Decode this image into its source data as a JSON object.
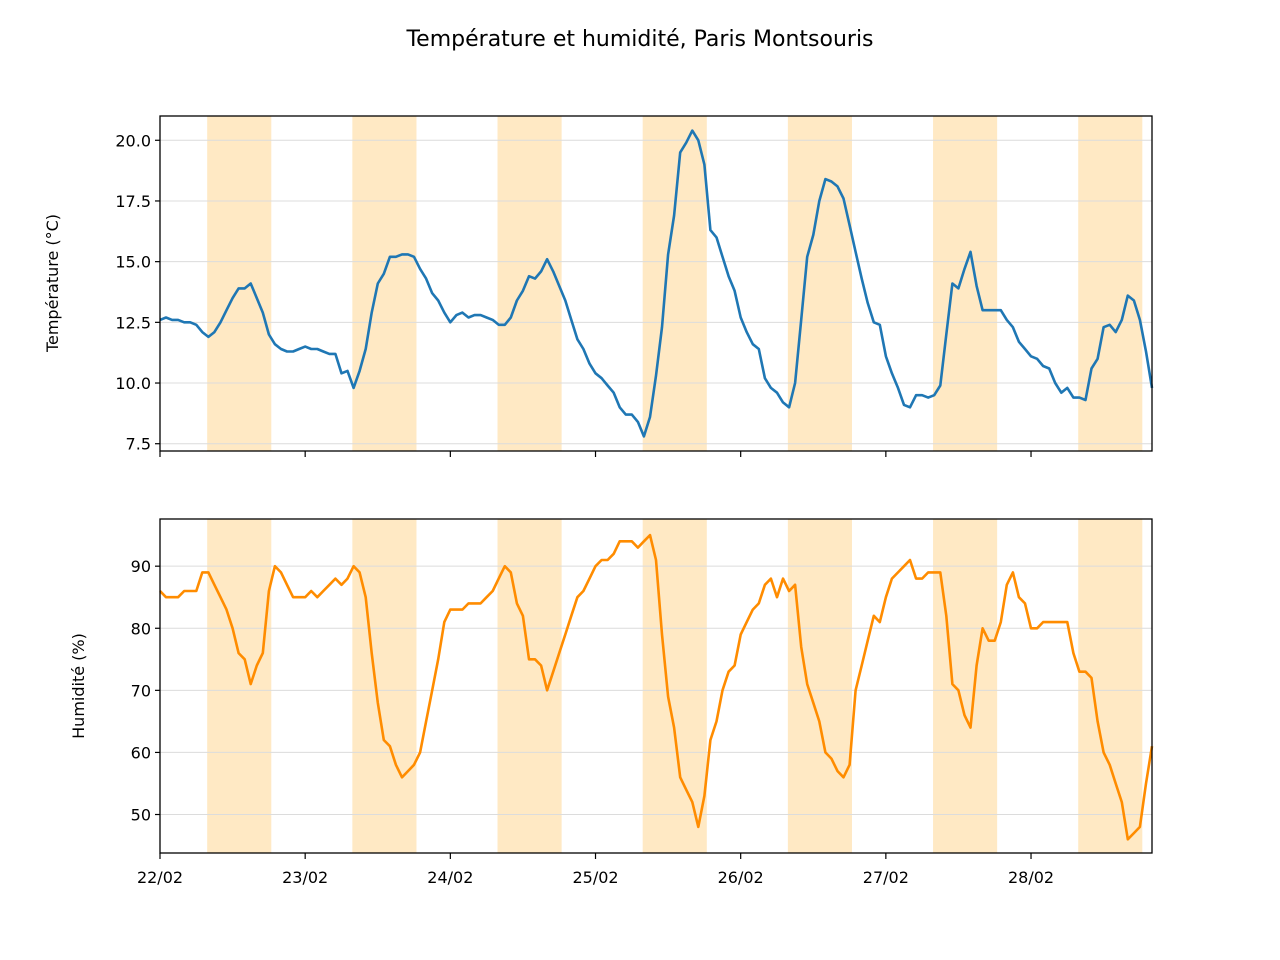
{
  "figure": {
    "title": "Température et humidité, Paris Montsouris"
  },
  "colors": {
    "temperature": "#1f77b4",
    "humidity": "#ff8c00",
    "daylight_band": "#ffe9c4",
    "grid": "#dcdcdc"
  },
  "chart_data": [
    {
      "type": "line",
      "ylabel": "Température (°C)",
      "xlabel": "",
      "ylim": [
        7.2,
        21.0
      ],
      "yticks": [
        7.5,
        10.0,
        12.5,
        15.0,
        17.5,
        20.0
      ],
      "ytick_labels": [
        "7.5",
        "10.0",
        "12.5",
        "15.0",
        "17.5",
        "20.0"
      ],
      "x_unit": "hours since 22/02 00:00",
      "xlim": [
        0,
        164
      ],
      "xticks": [
        0,
        24,
        48,
        72,
        96,
        120,
        144
      ],
      "xtick_labels": [
        "",
        "",
        "",
        "",
        "",
        "",
        ""
      ],
      "grid": "horizontal",
      "shaded_periods": [
        [
          7.8,
          18.4
        ],
        [
          31.8,
          42.4
        ],
        [
          55.8,
          66.4
        ],
        [
          79.8,
          90.4
        ],
        [
          103.8,
          114.4
        ],
        [
          127.8,
          138.4
        ],
        [
          151.8,
          162.4
        ]
      ],
      "series": [
        {
          "name": "Température",
          "x": [
            0,
            1,
            2,
            3,
            4,
            5,
            6,
            7,
            8,
            9,
            10,
            11,
            12,
            13,
            14,
            15,
            16,
            17,
            18,
            19,
            20,
            21,
            22,
            23,
            24,
            25,
            26,
            27,
            28,
            29,
            30,
            31,
            32,
            33,
            34,
            35,
            36,
            37,
            38,
            39,
            40,
            41,
            42,
            43,
            44,
            45,
            46,
            47,
            48,
            49,
            50,
            51,
            52,
            53,
            54,
            55,
            56,
            57,
            58,
            59,
            60,
            61,
            62,
            63,
            64,
            65,
            66,
            67,
            68,
            69,
            70,
            71,
            72,
            73,
            74,
            75,
            76,
            77,
            78,
            79,
            80,
            81,
            82,
            83,
            84,
            85,
            86,
            87,
            88,
            89,
            90,
            91,
            92,
            93,
            94,
            95,
            96,
            97,
            98,
            99,
            100,
            101,
            102,
            103,
            104,
            105,
            106,
            107,
            108,
            109,
            110,
            111,
            112,
            113,
            114,
            115,
            116,
            117,
            118,
            119,
            120,
            121,
            122,
            123,
            124,
            125,
            126,
            127,
            128,
            129,
            130,
            131,
            132,
            133,
            134,
            135,
            136,
            137,
            138,
            139,
            140,
            141,
            142,
            143,
            144,
            145,
            146,
            147,
            148,
            149,
            150,
            151,
            152,
            153,
            154,
            155,
            156,
            157,
            158,
            159,
            160,
            161,
            162,
            163,
            164
          ],
          "y": [
            12.6,
            12.7,
            12.6,
            12.6,
            12.5,
            12.5,
            12.4,
            12.1,
            11.9,
            12.1,
            12.5,
            13.0,
            13.5,
            13.9,
            13.9,
            14.1,
            13.5,
            12.9,
            12.0,
            11.6,
            11.4,
            11.3,
            11.3,
            11.4,
            11.5,
            11.4,
            11.4,
            11.3,
            11.2,
            11.2,
            10.4,
            10.5,
            9.8,
            10.5,
            11.4,
            12.9,
            14.1,
            14.5,
            15.2,
            15.2,
            15.3,
            15.3,
            15.2,
            14.7,
            14.3,
            13.7,
            13.4,
            12.9,
            12.5,
            12.8,
            12.9,
            12.7,
            12.8,
            12.8,
            12.7,
            12.6,
            12.4,
            12.4,
            12.7,
            13.4,
            13.8,
            14.4,
            14.3,
            14.6,
            15.1,
            14.6,
            14.0,
            13.4,
            12.6,
            11.8,
            11.4,
            10.8,
            10.4,
            10.2,
            9.9,
            9.6,
            9.0,
            8.7,
            8.7,
            8.4,
            7.8,
            8.6,
            10.3,
            12.3,
            15.3,
            16.9,
            19.5,
            19.9,
            20.4,
            20.0,
            19.0,
            16.3,
            16.0,
            15.2,
            14.4,
            13.8,
            12.7,
            12.1,
            11.6,
            11.4,
            10.2,
            9.8,
            9.6,
            9.2,
            9.0,
            10.0,
            12.6,
            15.2,
            16.1,
            17.5,
            18.4,
            18.3,
            18.1,
            17.6,
            16.5,
            15.4,
            14.3,
            13.3,
            12.5,
            12.4,
            11.1,
            10.4,
            9.8,
            9.1,
            9.0,
            9.5,
            9.5,
            9.4,
            9.5,
            9.9,
            12.0,
            14.1,
            13.9,
            14.7,
            15.4,
            14.0,
            13.0,
            13.0,
            13.0,
            13.0,
            12.6,
            12.3,
            11.7,
            11.4,
            11.1,
            11.0,
            10.7,
            10.6,
            10.0,
            9.6,
            9.8,
            9.4,
            9.4,
            9.3,
            10.6,
            11.0,
            12.3,
            12.4,
            12.1,
            12.6,
            13.6,
            13.4,
            12.6,
            11.3,
            9.8
          ]
        }
      ]
    },
    {
      "type": "line",
      "ylabel": "Humidité (%)",
      "xlabel": "",
      "ylim": [
        43.8,
        97.6
      ],
      "yticks": [
        50,
        60,
        70,
        80,
        90
      ],
      "ytick_labels": [
        "50",
        "60",
        "70",
        "80",
        "90"
      ],
      "x_unit": "hours since 22/02 00:00",
      "xlim": [
        0,
        164
      ],
      "xticks": [
        0,
        24,
        48,
        72,
        96,
        120,
        144
      ],
      "xtick_labels": [
        "22/02",
        "23/02",
        "24/02",
        "25/02",
        "26/02",
        "27/02",
        "28/02"
      ],
      "grid": "horizontal",
      "shaded_periods": [
        [
          7.8,
          18.4
        ],
        [
          31.8,
          42.4
        ],
        [
          55.8,
          66.4
        ],
        [
          79.8,
          90.4
        ],
        [
          103.8,
          114.4
        ],
        [
          127.8,
          138.4
        ],
        [
          151.8,
          162.4
        ]
      ],
      "series": [
        {
          "name": "Humidité",
          "x": [
            0,
            1,
            2,
            3,
            4,
            5,
            6,
            7,
            8,
            9,
            10,
            11,
            12,
            13,
            14,
            15,
            16,
            17,
            18,
            19,
            20,
            21,
            22,
            23,
            24,
            25,
            26,
            27,
            28,
            29,
            30,
            31,
            32,
            33,
            34,
            35,
            36,
            37,
            38,
            39,
            40,
            41,
            42,
            43,
            44,
            45,
            46,
            47,
            48,
            49,
            50,
            51,
            52,
            53,
            54,
            55,
            56,
            57,
            58,
            59,
            60,
            61,
            62,
            63,
            64,
            65,
            66,
            67,
            68,
            69,
            70,
            71,
            72,
            73,
            74,
            75,
            76,
            77,
            78,
            79,
            80,
            81,
            82,
            83,
            84,
            85,
            86,
            87,
            88,
            89,
            90,
            91,
            92,
            93,
            94,
            95,
            96,
            97,
            98,
            99,
            100,
            101,
            102,
            103,
            104,
            105,
            106,
            107,
            108,
            109,
            110,
            111,
            112,
            113,
            114,
            115,
            116,
            117,
            118,
            119,
            120,
            121,
            122,
            123,
            124,
            125,
            126,
            127,
            128,
            129,
            130,
            131,
            132,
            133,
            134,
            135,
            136,
            137,
            138,
            139,
            140,
            141,
            142,
            143,
            144,
            145,
            146,
            147,
            148,
            149,
            150,
            151,
            152,
            153,
            154,
            155,
            156,
            157,
            158,
            159,
            160,
            161,
            162,
            163,
            164
          ],
          "y": [
            86,
            85,
            85,
            85,
            86,
            86,
            86,
            89,
            89,
            87,
            85,
            83,
            80,
            76,
            75,
            71,
            74,
            76,
            86,
            90,
            89,
            87,
            85,
            85,
            85,
            86,
            85,
            86,
            87,
            88,
            87,
            88,
            90,
            89,
            85,
            76,
            68,
            62,
            61,
            58,
            56,
            57,
            58,
            60,
            65,
            70,
            75,
            81,
            83,
            83,
            83,
            84,
            84,
            84,
            85,
            86,
            88,
            90,
            89,
            84,
            82,
            75,
            75,
            74,
            70,
            73,
            76,
            79,
            82,
            85,
            86,
            88,
            90,
            91,
            91,
            92,
            94,
            94,
            94,
            93,
            94,
            95,
            91,
            79,
            69,
            64,
            56,
            54,
            52,
            48,
            53,
            62,
            65,
            70,
            73,
            74,
            79,
            81,
            83,
            84,
            87,
            88,
            85,
            88,
            86,
            87,
            77,
            71,
            68,
            65,
            60,
            59,
            57,
            56,
            58,
            70,
            74,
            78,
            82,
            81,
            85,
            88,
            89,
            90,
            91,
            88,
            88,
            89,
            89,
            89,
            82,
            71,
            70,
            66,
            64,
            74,
            80,
            78,
            78,
            81,
            87,
            89,
            85,
            84,
            80,
            80,
            81,
            81,
            81,
            81,
            81,
            76,
            73,
            73,
            72,
            65,
            60,
            58,
            55,
            52,
            46,
            47,
            48,
            55,
            61
          ]
        }
      ]
    }
  ]
}
